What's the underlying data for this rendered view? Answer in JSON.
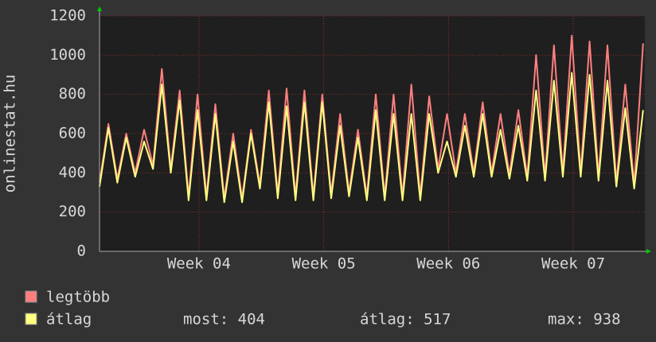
{
  "chart_data": {
    "type": "line",
    "y_label": "onlinestat.hu",
    "x": [
      0,
      0.5,
      1,
      1.5,
      2,
      2.5,
      3,
      3.5,
      4,
      4.5,
      5,
      5.5,
      6,
      6.5,
      7,
      7.5,
      8,
      8.5,
      9,
      9.5,
      10,
      10.5,
      11,
      11.5,
      12,
      12.5,
      13,
      13.5,
      14,
      14.5,
      15,
      15.5,
      16,
      16.5,
      17,
      17.5,
      18,
      18.5,
      19,
      19.5,
      20,
      20.5,
      21,
      21.5,
      22,
      22.5,
      23,
      23.5,
      24,
      24.5,
      25,
      25.5,
      26,
      26.5,
      27,
      27.5,
      28,
      28.5,
      29,
      29.5,
      30,
      30.5
    ],
    "series": [
      {
        "name": "legtöbb",
        "color": "#ff7f7f",
        "values": [
          350,
          650,
          370,
          600,
          400,
          620,
          440,
          930,
          420,
          820,
          280,
          800,
          280,
          750,
          270,
          600,
          270,
          620,
          340,
          820,
          290,
          830,
          280,
          820,
          280,
          800,
          290,
          700,
          300,
          620,
          280,
          800,
          280,
          800,
          280,
          850,
          280,
          790,
          420,
          700,
          400,
          700,
          400,
          760,
          400,
          700,
          390,
          720,
          380,
          1000,
          380,
          1050,
          400,
          1100,
          400,
          1070,
          380,
          1050,
          350,
          850,
          340,
          1060
        ]
      },
      {
        "name": "átlag",
        "color": "#ffff80",
        "values": [
          330,
          630,
          350,
          580,
          380,
          560,
          420,
          850,
          400,
          770,
          260,
          720,
          260,
          700,
          250,
          560,
          250,
          600,
          320,
          760,
          270,
          740,
          260,
          760,
          260,
          760,
          270,
          640,
          280,
          580,
          260,
          720,
          260,
          700,
          260,
          700,
          260,
          700,
          400,
          560,
          380,
          640,
          380,
          700,
          380,
          620,
          370,
          640,
          360,
          820,
          360,
          870,
          380,
          910,
          380,
          900,
          360,
          870,
          330,
          730,
          320,
          720
        ]
      }
    ],
    "xlim": [
      0,
      30.6
    ],
    "xticks": [
      {
        "value": 5.58,
        "label": "Week 04"
      },
      {
        "value": 12.58,
        "label": "Week 05"
      },
      {
        "value": 19.58,
        "label": "Week 06"
      },
      {
        "value": 26.58,
        "label": "Week 07"
      }
    ],
    "ylim": [
      0,
      1200
    ],
    "yticks": [
      0,
      200,
      400,
      600,
      800,
      1000,
      1200
    ],
    "grid": true,
    "stats": [
      "most: 404",
      "átlag: 517",
      "max: 938"
    ]
  }
}
